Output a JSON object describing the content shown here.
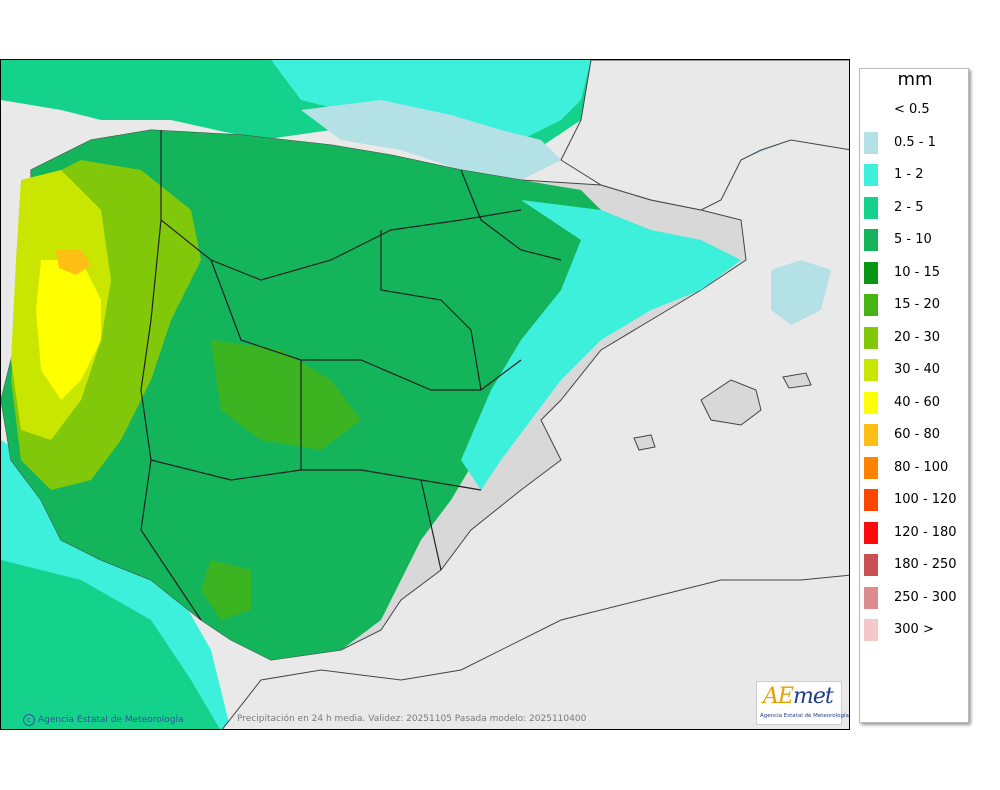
{
  "legend": {
    "title": "mm",
    "items": [
      {
        "label": "< 0.5",
        "color": "#ffffff"
      },
      {
        "label": "0.5 - 1",
        "color": "#b4e1e6"
      },
      {
        "label": "1 - 2",
        "color": "#3cf0dc"
      },
      {
        "label": "2 - 5",
        "color": "#14d28c"
      },
      {
        "label": "5 - 10",
        "color": "#14b45a"
      },
      {
        "label": "10 - 15",
        "color": "#0a9614"
      },
      {
        "label": "15 - 20",
        "color": "#46b414"
      },
      {
        "label": "20 - 30",
        "color": "#82c80a"
      },
      {
        "label": "30 - 40",
        "color": "#c8e600"
      },
      {
        "label": "40 - 60",
        "color": "#ffff00"
      },
      {
        "label": "60 - 80",
        "color": "#ffbe14"
      },
      {
        "label": "80 - 100",
        "color": "#ff8200"
      },
      {
        "label": "100 - 120",
        "color": "#ff4600"
      },
      {
        "label": "120 - 180",
        "color": "#ff0a0a"
      },
      {
        "label": "180 - 250",
        "color": "#c85050"
      },
      {
        "label": "250 - 300",
        "color": "#dc8c8c"
      },
      {
        "label": "300 >",
        "color": "#f5c8c8"
      }
    ]
  },
  "map": {
    "credit_agency": "Agencia Estatal de Meteorología",
    "credit_product": "Precipitación en 24 h media. Validez: 20251105 Pasada modelo: 2025110400",
    "logo_text_a": "A",
    "logo_text_e": "E",
    "logo_text_rest": "met",
    "logo_subtitle": "Agencia Estatal de Meteorología"
  }
}
